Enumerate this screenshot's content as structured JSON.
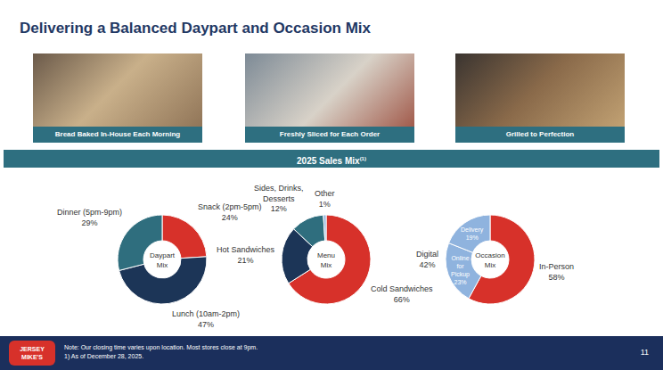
{
  "header": {
    "title": "Delivering a Balanced Daypart and Occasion Mix"
  },
  "images": [
    {
      "caption": "Bread Baked In-House Each Morning"
    },
    {
      "caption": "Freshly Sliced for Each Order"
    },
    {
      "caption": "Grilled to Perfection"
    }
  ],
  "section": {
    "title": "2025 Sales Mix",
    "note_mark": "(1)"
  },
  "chart_data": [
    {
      "type": "pie",
      "title": "Daypart Mix",
      "categories": [
        "Snack (2pm-5pm)",
        "Lunch (10am-2pm)",
        "Dinner (5pm-9pm)"
      ],
      "values": [
        24,
        47,
        29
      ],
      "value_labels": [
        "24%",
        "47%",
        "29%"
      ],
      "colors": [
        "#d7312a",
        "#1c3557",
        "#2f6e7e"
      ],
      "data_labels": true
    },
    {
      "type": "pie",
      "title": "Menu Mix",
      "categories": [
        "Cold Sandwiches",
        "Hot Sandwiches",
        "Sides, Drinks, Desserts",
        "Other"
      ],
      "values": [
        66,
        21,
        12,
        1
      ],
      "value_labels": [
        "66%",
        "21%",
        "12%",
        "1%"
      ],
      "colors": [
        "#d7312a",
        "#1c3557",
        "#2f6e7e",
        "#8fb3de"
      ],
      "data_labels": true
    },
    {
      "type": "pie",
      "title": "Occasion Mix",
      "categories": [
        "In-Person",
        "Online for Pickup",
        "Delivery"
      ],
      "values": [
        58,
        23,
        19
      ],
      "value_labels": [
        "58%",
        "23%",
        "19%"
      ],
      "colors": [
        "#d7312a",
        "#8fb3de",
        "#8fb3de"
      ],
      "data_labels": true,
      "group": {
        "label": "Digital",
        "value": 42,
        "value_label": "42%",
        "members": [
          "Online for Pickup",
          "Delivery"
        ]
      }
    }
  ],
  "footer": {
    "logo": "JERSEY MIKE'S",
    "notes": [
      "Note: Our closing time varies upon location. Most stores close at 9pm.",
      "1) As of December 28, 2025."
    ],
    "page": "11"
  }
}
